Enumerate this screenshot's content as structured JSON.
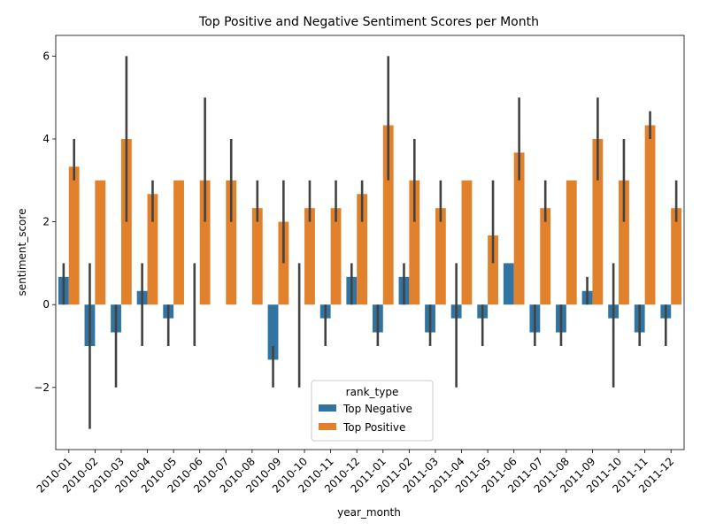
{
  "chart_data": {
    "type": "bar",
    "title": "Top Positive and Negative Sentiment Scores per Month",
    "xlabel": "year_month",
    "ylabel": "sentiment_score",
    "ylim": [
      -3.5,
      6.5
    ],
    "yticks": [
      -2,
      0,
      2,
      4,
      6
    ],
    "grid": false,
    "legend": {
      "title": "rank_type",
      "placement": "lower-center"
    },
    "categories": [
      "2010-01",
      "2010-02",
      "2010-03",
      "2010-04",
      "2010-05",
      "2010-06",
      "2010-07",
      "2010-08",
      "2010-09",
      "2010-10",
      "2010-11",
      "2010-12",
      "2011-01",
      "2011-02",
      "2011-03",
      "2011-04",
      "2011-05",
      "2011-06",
      "2011-07",
      "2011-08",
      "2011-09",
      "2011-10",
      "2011-11",
      "2011-12"
    ],
    "series": [
      {
        "name": "Top Negative",
        "color": "#3274a1",
        "values": [
          0.67,
          -1.0,
          -0.67,
          0.33,
          -0.33,
          0.0,
          0.0,
          0.0,
          -1.33,
          0.0,
          -0.33,
          0.67,
          -0.67,
          0.67,
          -0.67,
          -0.33,
          -0.33,
          1.0,
          -0.67,
          -0.67,
          0.33,
          -0.33,
          -0.67,
          -0.33
        ],
        "ci_low": [
          0.0,
          -3.0,
          -2.0,
          -1.0,
          -1.0,
          -1.0,
          0.0,
          0.0,
          -2.0,
          -2.0,
          -1.0,
          0.0,
          -1.0,
          0.0,
          -1.0,
          -2.0,
          -1.0,
          1.0,
          -1.0,
          -1.0,
          0.0,
          -2.0,
          -1.0,
          -1.0
        ],
        "ci_high": [
          1.0,
          1.0,
          0.0,
          1.0,
          0.0,
          1.0,
          0.0,
          0.0,
          -1.0,
          1.0,
          0.0,
          1.0,
          0.0,
          1.0,
          0.0,
          1.0,
          0.0,
          1.0,
          0.0,
          0.0,
          0.67,
          1.0,
          0.0,
          0.0
        ]
      },
      {
        "name": "Top Positive",
        "color": "#e1812c",
        "values": [
          3.33,
          3.0,
          4.0,
          2.67,
          3.0,
          3.0,
          3.0,
          2.33,
          2.0,
          2.33,
          2.33,
          2.67,
          4.33,
          3.0,
          2.33,
          3.0,
          1.67,
          3.67,
          2.33,
          3.0,
          4.0,
          3.0,
          4.33,
          2.33
        ],
        "ci_low": [
          3.0,
          3.0,
          2.0,
          2.0,
          3.0,
          2.0,
          2.0,
          2.0,
          1.0,
          2.0,
          2.0,
          2.0,
          3.0,
          2.0,
          2.0,
          3.0,
          1.0,
          3.0,
          2.0,
          3.0,
          3.0,
          2.0,
          4.0,
          2.0
        ],
        "ci_high": [
          4.0,
          3.0,
          6.0,
          3.0,
          3.0,
          5.0,
          4.0,
          3.0,
          3.0,
          3.0,
          3.0,
          3.0,
          6.0,
          4.0,
          3.0,
          3.0,
          3.0,
          5.0,
          3.0,
          3.0,
          5.0,
          4.0,
          4.67,
          3.0
        ]
      }
    ]
  }
}
